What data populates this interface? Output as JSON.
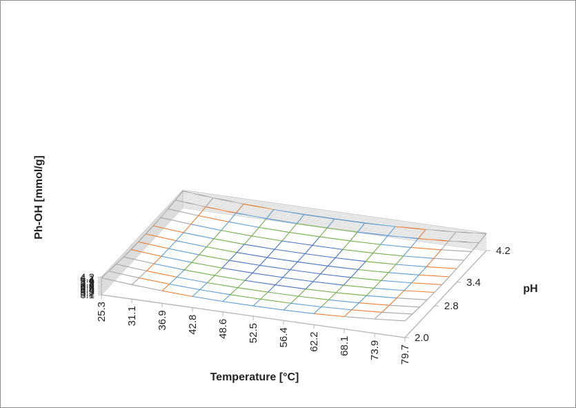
{
  "chart_data": {
    "type": "surface",
    "title": "",
    "zlabel": "Ph-OH [mmol/g]",
    "xlabel": "Temperature [°C]",
    "ylabel": "pH",
    "z_ticks": [
      "3.1",
      "3.2",
      "3.3",
      "3.4",
      "3.5",
      "3.6",
      "3.7",
      "3.8",
      "3.9",
      "4",
      "4.1",
      "4.2"
    ],
    "x_ticks": [
      "25.3",
      "31.1",
      "36.9",
      "42.8",
      "48.6",
      "52.5",
      "56.4",
      "62.2",
      "68.1",
      "73.9",
      "79.7"
    ],
    "y_ticks": [
      "2.0",
      "2.8",
      "3.4",
      "4.2"
    ],
    "zlim": [
      3.1,
      4.2
    ],
    "grid": true,
    "series_colors": [
      "#4472c4",
      "#ed7d31",
      "#a5a5a5",
      "#ffc000",
      "#5b9bd5",
      "#70ad47"
    ],
    "band_edges": [
      3.5,
      3.6,
      3.7,
      3.8,
      3.9
    ],
    "surface_model": {
      "description_free": true,
      "center_x": 52.5,
      "center_pH": 3.1,
      "min_value": 3.53,
      "coef_x": 0.00055,
      "coef_pH": 0.18,
      "coef_cross": 0.004
    }
  }
}
